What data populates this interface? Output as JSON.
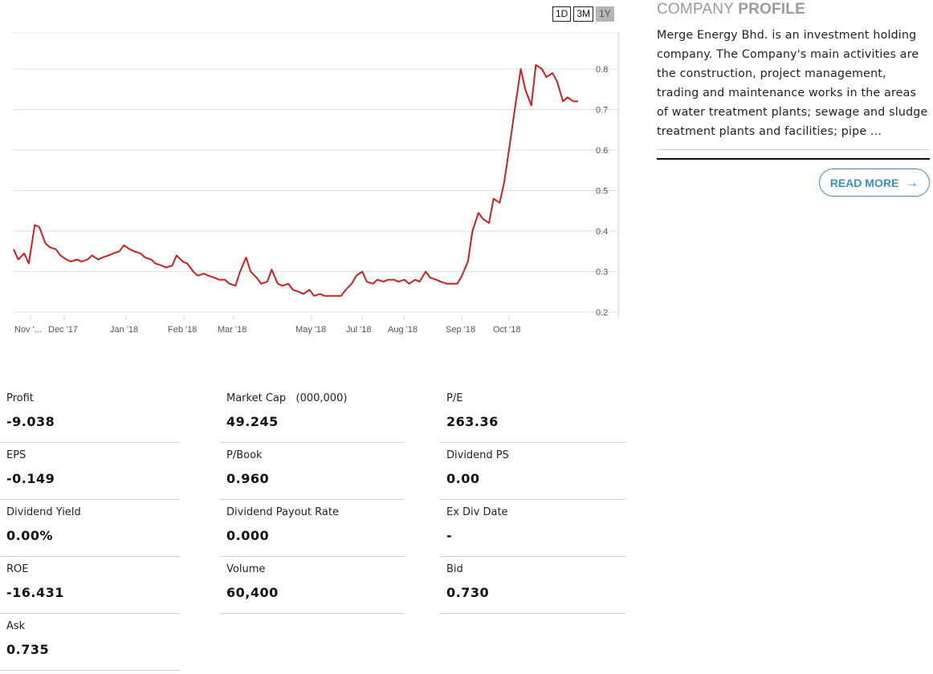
{
  "range_buttons": [
    {
      "label": "1D",
      "active": false
    },
    {
      "label": "3M",
      "active": false
    },
    {
      "label": "1Y",
      "active": true
    }
  ],
  "chart_data": {
    "type": "line",
    "ylim": [
      0.2,
      0.8
    ],
    "yticks": [
      "0.2",
      "0.3",
      "0.4",
      "0.5",
      "0.6",
      "0.7",
      "0.8"
    ],
    "xticks": [
      "Nov '...",
      "Dec '17",
      "Jan '18",
      "Feb '18",
      "Mar '18",
      "May '18",
      "Jul '18",
      "Aug '18",
      "Sep '18",
      "Oct '18"
    ],
    "grid": true,
    "line_color": "#cc1f1f",
    "series": [
      {
        "x": [
          "2017-11-13",
          "2017-11-16",
          "2017-11-20",
          "2017-11-23",
          "2017-11-27",
          "2017-11-30",
          "2017-12-04",
          "2017-12-07",
          "2017-12-11",
          "2017-12-14",
          "2017-12-18",
          "2017-12-21",
          "2017-12-25",
          "2017-12-28",
          "2018-01-01",
          "2018-01-04",
          "2018-01-08",
          "2018-01-11",
          "2018-01-15",
          "2018-01-18",
          "2018-01-22",
          "2018-01-25",
          "2018-01-29",
          "2018-02-01",
          "2018-02-05",
          "2018-02-08",
          "2018-02-12",
          "2018-02-15",
          "2018-02-19",
          "2018-02-22",
          "2018-02-26",
          "2018-03-01",
          "2018-03-05",
          "2018-03-08",
          "2018-03-12",
          "2018-03-15",
          "2018-03-19",
          "2018-03-22",
          "2018-03-26",
          "2018-03-29",
          "2018-04-02",
          "2018-04-05",
          "2018-04-09",
          "2018-04-12",
          "2018-04-16",
          "2018-04-19",
          "2018-04-23",
          "2018-04-26",
          "2018-04-30",
          "2018-05-03",
          "2018-05-07",
          "2018-05-10",
          "2018-05-14",
          "2018-05-17",
          "2018-05-21",
          "2018-05-24",
          "2018-05-28",
          "2018-05-31",
          "2018-06-04",
          "2018-06-07",
          "2018-06-11",
          "2018-06-14",
          "2018-06-18",
          "2018-06-21",
          "2018-06-25",
          "2018-06-28",
          "2018-07-02",
          "2018-07-05",
          "2018-07-09",
          "2018-07-12",
          "2018-07-16",
          "2018-07-19",
          "2018-07-23",
          "2018-07-26",
          "2018-07-30",
          "2018-08-02",
          "2018-08-06",
          "2018-08-09",
          "2018-08-13",
          "2018-08-16",
          "2018-08-20",
          "2018-08-23",
          "2018-08-27",
          "2018-08-30",
          "2018-09-03",
          "2018-09-06",
          "2018-09-10",
          "2018-09-13",
          "2018-09-17",
          "2018-09-20",
          "2018-09-24",
          "2018-09-27",
          "2018-10-01",
          "2018-10-04",
          "2018-10-08",
          "2018-10-11",
          "2018-10-15",
          "2018-10-18",
          "2018-10-22",
          "2018-10-25",
          "2018-10-29",
          "2018-11-01",
          "2018-11-05",
          "2018-11-08",
          "2018-11-12",
          "2018-11-15",
          "2018-11-19",
          "2018-11-22"
        ],
        "values": [
          0.355,
          0.33,
          0.345,
          0.32,
          0.415,
          0.41,
          0.37,
          0.36,
          0.355,
          0.34,
          0.33,
          0.325,
          0.33,
          0.325,
          0.33,
          0.34,
          0.33,
          0.335,
          0.34,
          0.345,
          0.35,
          0.365,
          0.355,
          0.35,
          0.345,
          0.335,
          0.33,
          0.32,
          0.315,
          0.31,
          0.315,
          0.34,
          0.325,
          0.32,
          0.3,
          0.29,
          0.295,
          0.29,
          0.285,
          0.28,
          0.28,
          0.27,
          0.265,
          0.3,
          0.335,
          0.3,
          0.285,
          0.27,
          0.275,
          0.305,
          0.27,
          0.265,
          0.27,
          0.255,
          0.25,
          0.245,
          0.255,
          0.24,
          0.245,
          0.24,
          0.24,
          0.24,
          0.24,
          0.255,
          0.27,
          0.29,
          0.3,
          0.275,
          0.27,
          0.28,
          0.275,
          0.28,
          0.28,
          0.275,
          0.28,
          0.27,
          0.28,
          0.275,
          0.3,
          0.285,
          0.28,
          0.275,
          0.27,
          0.27,
          0.27,
          0.29,
          0.325,
          0.4,
          0.445,
          0.43,
          0.42,
          0.48,
          0.47,
          0.52,
          0.62,
          0.7,
          0.8,
          0.75,
          0.71,
          0.81,
          0.8,
          0.78,
          0.79,
          0.77,
          0.72,
          0.73,
          0.72,
          0.72
        ]
      }
    ]
  },
  "profile": {
    "title_light": "COMPANY ",
    "title_bold": "PROFILE",
    "text": "Merge Energy Bhd. is an investment holding company. The Company's main activities are the construction, project management, trading and maintenance works in the areas of water treatment plants; sewage and sludge treatment plants and facilities; pipe ...",
    "read_more": "READ MORE",
    "accent": "#3a8ec4"
  },
  "stats": [
    {
      "label": "Profit",
      "value": "-9.038"
    },
    {
      "label": "Market Cap   (000,000)",
      "value": "49.245"
    },
    {
      "label": "P/E",
      "value": "263.36"
    },
    {
      "label": "EPS",
      "value": "-0.149"
    },
    {
      "label": "P/Book",
      "value": "0.960"
    },
    {
      "label": "Dividend PS",
      "value": "0.00"
    },
    {
      "label": "Dividend Yield",
      "value": "0.00%"
    },
    {
      "label": "Dividend Payout Rate",
      "value": "0.000"
    },
    {
      "label": "Ex Div Date",
      "value": "-"
    },
    {
      "label": "ROE",
      "value": "-16.431"
    },
    {
      "label": "Volume",
      "value": "60,400"
    },
    {
      "label": "Bid",
      "value": "0.730"
    },
    {
      "label": "Ask",
      "value": "0.735"
    }
  ]
}
